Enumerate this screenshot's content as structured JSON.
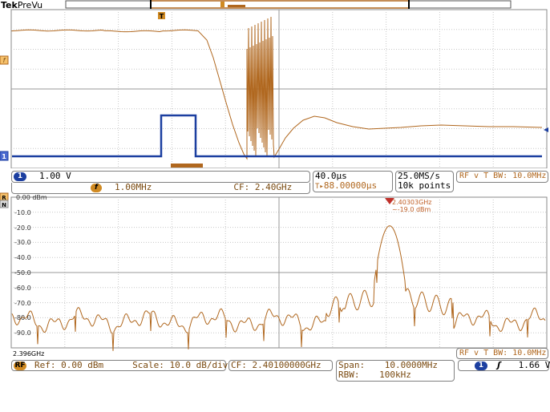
{
  "brand": {
    "name": "Tek",
    "mode": "PreVu"
  },
  "time_domain": {
    "ch1_scale": "1.00 V",
    "math_freq": "1.00MHz",
    "cf": "CF:  2.40GHz",
    "horizontal_scale": "40.0µs",
    "trigger_position": "88.00000µs",
    "sample_rate": "25.0MS/s",
    "record_length": "10k points",
    "rf_vs_time_bw": "RF v T BW: 10.0MHz",
    "trigger_marker": "T",
    "ch1_marker": "1",
    "math_marker": "f"
  },
  "spectrum": {
    "y_labels": [
      "0.00 dBm",
      "-10.0",
      "-20.0",
      "-30.0",
      "-40.0",
      "-50.0",
      "-60.0",
      "-70.0",
      "-80.0",
      "-90.0"
    ],
    "start_freq": "2.396GHz",
    "marker_freq": "2.40303GHz",
    "marker_level": "-19.0 dBm",
    "rf_vs_time_bw": "RF v T BW: 10.0MHz",
    "ref_label": "Ref: 0.00 dBm",
    "scale_label": "Scale: 10.0 dB/div",
    "cf_label": "CF: 2.40100000GHz",
    "span_label": "Span:",
    "span_value": "10.0000MHz",
    "rbw_label": "RBW:",
    "rbw_value": "100kHz",
    "trigger_level": "1.66 V",
    "rf_badge": "RF",
    "ch_badge": "1",
    "ref_marker": "R",
    "n_marker": "N"
  },
  "colors": {
    "brown": "#b0671e",
    "blue": "#1c3fa0",
    "grid": "#c8c8c8"
  }
}
